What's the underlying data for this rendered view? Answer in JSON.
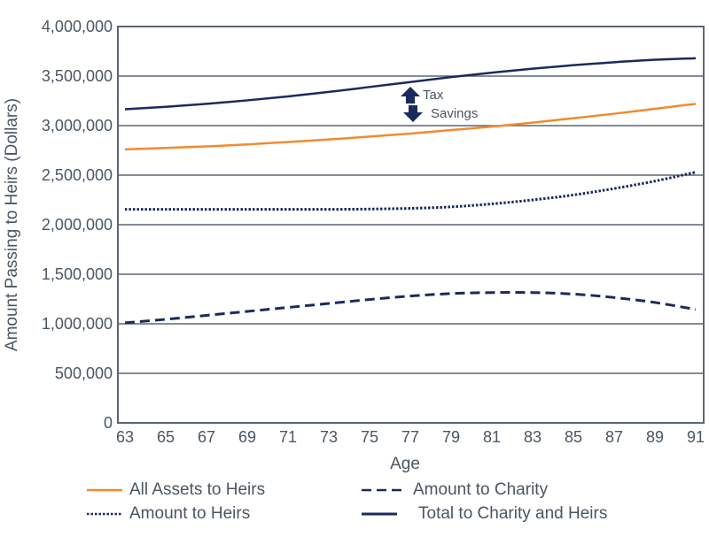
{
  "chart_data": {
    "type": "line",
    "title": "",
    "xlabel": "Age",
    "ylabel": "Amount Passing to Heirs (Dollars)",
    "xlim": [
      63,
      91
    ],
    "ylim": [
      0,
      4000000
    ],
    "grid": true,
    "legend_position": "bottom",
    "x_ticks": [
      "63",
      "65",
      "67",
      "69",
      "71",
      "73",
      "75",
      "77",
      "79",
      "81",
      "83",
      "85",
      "87",
      "89",
      "91"
    ],
    "y_ticks": [
      "0",
      "500,000",
      "1,000,000",
      "1,500,000",
      "2,000,000",
      "2,500,000",
      "3,000,000",
      "3,500,000",
      "4,000,000"
    ],
    "y_tick_values": [
      0,
      500000,
      1000000,
      1500000,
      2000000,
      2500000,
      3000000,
      3500000,
      4000000
    ],
    "x": [
      63,
      65,
      67,
      69,
      71,
      73,
      75,
      77,
      79,
      81,
      83,
      85,
      87,
      89,
      91
    ],
    "series": [
      {
        "name": "Total to Charity and Heirs",
        "color": "#1b2a5e",
        "style": "solid",
        "values": [
          3165000,
          3190000,
          3220000,
          3255000,
          3295000,
          3340000,
          3390000,
          3440000,
          3490000,
          3535000,
          3575000,
          3610000,
          3640000,
          3665000,
          3680000
        ]
      },
      {
        "name": "All Assets to Heirs",
        "color": "#f28a2e",
        "style": "solid",
        "values": [
          2760000,
          2775000,
          2790000,
          2810000,
          2835000,
          2860000,
          2890000,
          2920000,
          2955000,
          2990000,
          3030000,
          3075000,
          3120000,
          3170000,
          3220000
        ]
      },
      {
        "name": "Amount to Heirs",
        "color": "#1b2a5e",
        "style": "dotted",
        "values": [
          2155000,
          2155000,
          2155000,
          2155000,
          2155000,
          2155000,
          2158000,
          2165000,
          2180000,
          2210000,
          2250000,
          2300000,
          2365000,
          2440000,
          2530000
        ]
      },
      {
        "name": "Amount to Charity",
        "color": "#1b2a5e",
        "style": "dashed",
        "values": [
          1010000,
          1045000,
          1085000,
          1125000,
          1165000,
          1205000,
          1245000,
          1280000,
          1305000,
          1315000,
          1315000,
          1300000,
          1265000,
          1215000,
          1145000
        ]
      }
    ],
    "annotations": [
      {
        "text_line1": "Tax",
        "text_line2": "Savings",
        "age": 77,
        "arrow": "double-up-down"
      }
    ]
  },
  "legend": [
    {
      "label": "All Assets to Heirs",
      "color": "#f28a2e",
      "style": "solid"
    },
    {
      "label": "Amount to Charity",
      "color": "#1b2a5e",
      "style": "dashed"
    },
    {
      "label": "Amount to Heirs",
      "color": "#1b2a5e",
      "style": "dotted"
    },
    {
      "label": "Total to Charity and Heirs",
      "color": "#1b2a5e",
      "style": "solid"
    }
  ],
  "colors": {
    "axis": "#5b6672",
    "grid": "#5b6672",
    "navy": "#1b2a5e",
    "orange": "#f28a2e",
    "text": "#4a5663"
  }
}
